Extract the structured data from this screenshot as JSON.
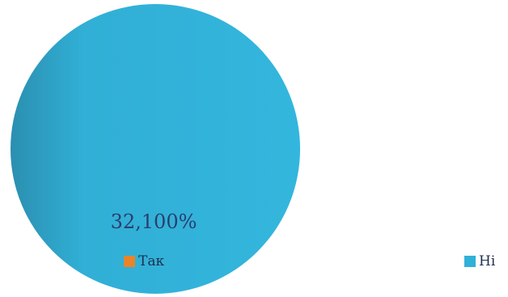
{
  "chart_data": {
    "type": "pie",
    "categories": [
      "Так",
      "Ні"
    ],
    "values": [
      0,
      100
    ],
    "colors": [
      "#e8842c",
      "#31b0d8"
    ],
    "data_label": "32,100%",
    "legend": [
      {
        "label": "Так",
        "color": "#e8842c"
      },
      {
        "label": "Ні",
        "color": "#31b0d8"
      }
    ]
  }
}
